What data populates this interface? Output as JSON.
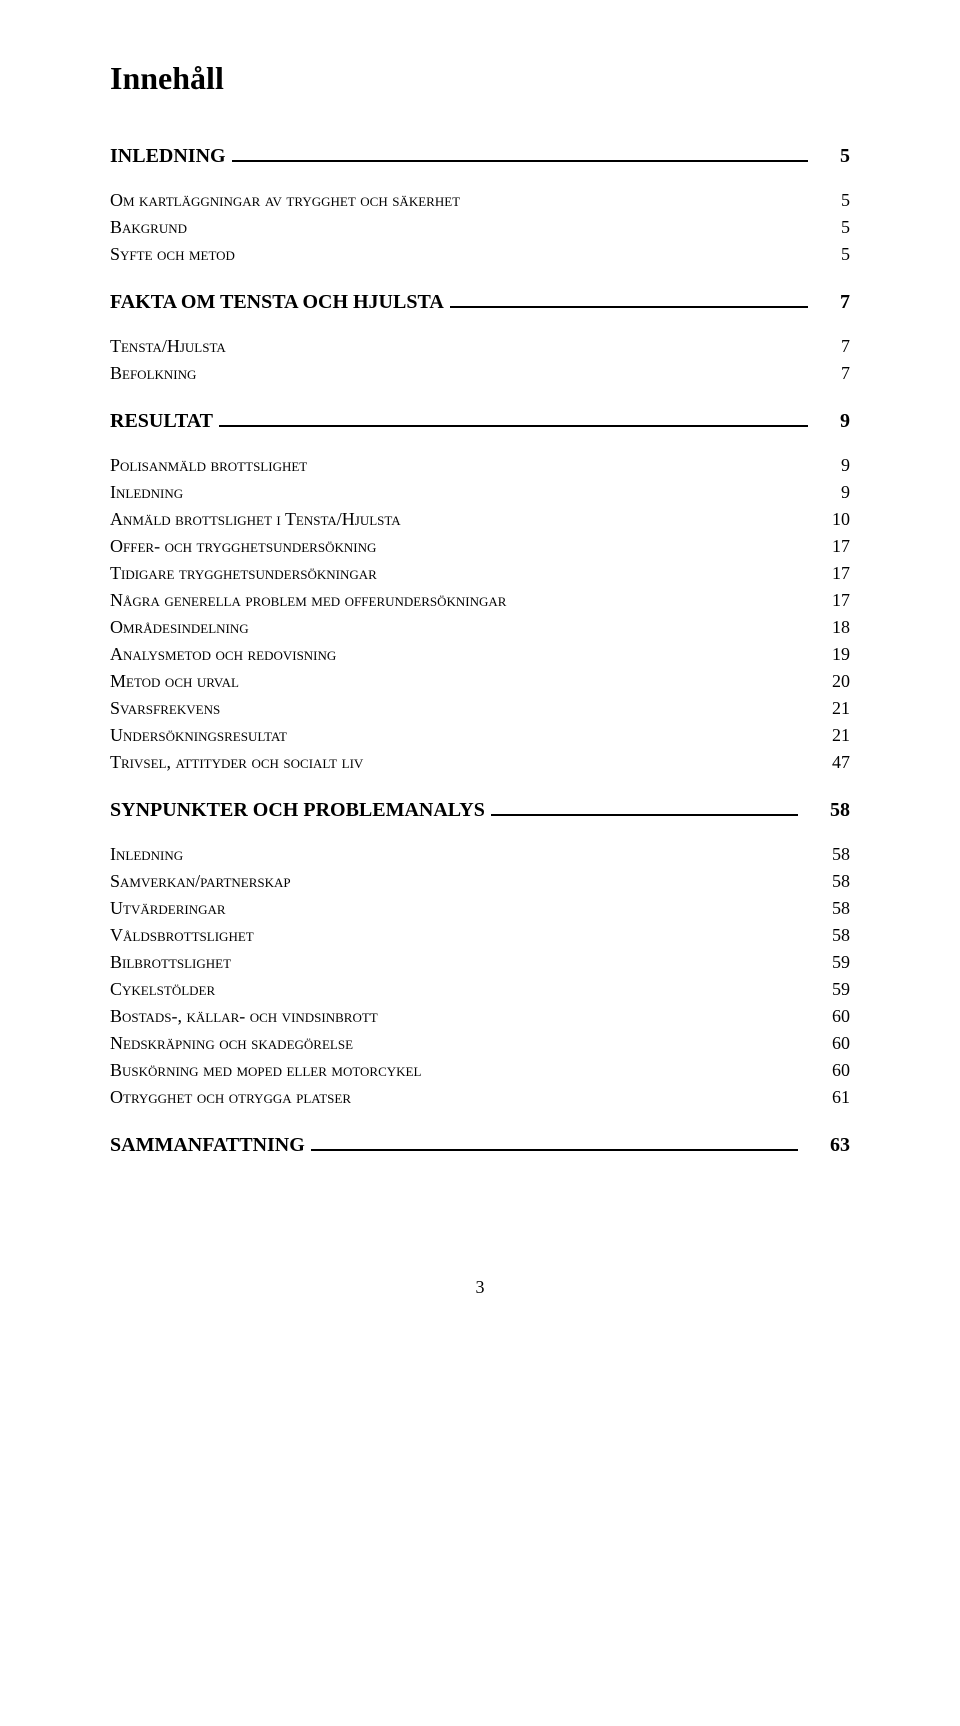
{
  "title": "Innehåll",
  "footer_page": "3",
  "sections": [
    {
      "heading": "INLEDNING",
      "page": "5",
      "entries": [
        {
          "text": "Om kartläggningar av trygghet och säkerhet",
          "page": "5"
        },
        {
          "text": "Bakgrund",
          "page": "5"
        },
        {
          "text": "Syfte och metod",
          "page": "5"
        }
      ]
    },
    {
      "heading": "FAKTA OM TENSTA OCH HJULSTA",
      "page": "7",
      "entries": [
        {
          "text": "Tensta/Hjulsta",
          "page": "7"
        },
        {
          "text": "Befolkning",
          "page": "7"
        }
      ]
    },
    {
      "heading": "RESULTAT",
      "page": "9",
      "entries": [
        {
          "text": "Polisanmäld brottslighet",
          "page": "9"
        },
        {
          "text": "Inledning",
          "page": "9"
        },
        {
          "text": "Anmäld brottslighet i Tensta/Hjulsta",
          "page": "10"
        },
        {
          "text": "Offer- och trygghetsundersökning",
          "page": "17"
        },
        {
          "text": "Tidigare trygghetsundersökningar",
          "page": "17"
        },
        {
          "text": "Några generella problem med offerundersökningar",
          "page": "17"
        },
        {
          "text": "Områdesindelning",
          "page": "18"
        },
        {
          "text": "Analysmetod och redovisning",
          "page": "19"
        },
        {
          "text": "Metod och urval",
          "page": "20"
        },
        {
          "text": "Svarsfrekvens",
          "page": "21"
        },
        {
          "text": "Undersökningsresultat",
          "page": "21"
        },
        {
          "text": "Trivsel, attityder och socialt liv",
          "page": "47"
        }
      ]
    },
    {
      "heading": "SYNPUNKTER OCH PROBLEMANALYS",
      "page": "58",
      "entries": [
        {
          "text": "Inledning",
          "page": "58"
        },
        {
          "text": "Samverkan/partnerskap",
          "page": "58"
        },
        {
          "text": "Utvärderingar",
          "page": "58"
        },
        {
          "text": "Våldsbrottslighet",
          "page": "58"
        },
        {
          "text": "Bilbrottslighet",
          "page": "59"
        },
        {
          "text": "Cykelstölder",
          "page": "59"
        },
        {
          "text": "Bostads-, källar- och vindsinbrott",
          "page": "60"
        },
        {
          "text": "Nedskräpning och skadegörelse",
          "page": "60"
        },
        {
          "text": "Buskörning med moped eller motorcykel",
          "page": "60"
        },
        {
          "text": "Otrygghet och otrygga platser",
          "page": "61"
        }
      ]
    },
    {
      "heading": "SAMMANFATTNING",
      "page": "63",
      "entries": []
    }
  ]
}
